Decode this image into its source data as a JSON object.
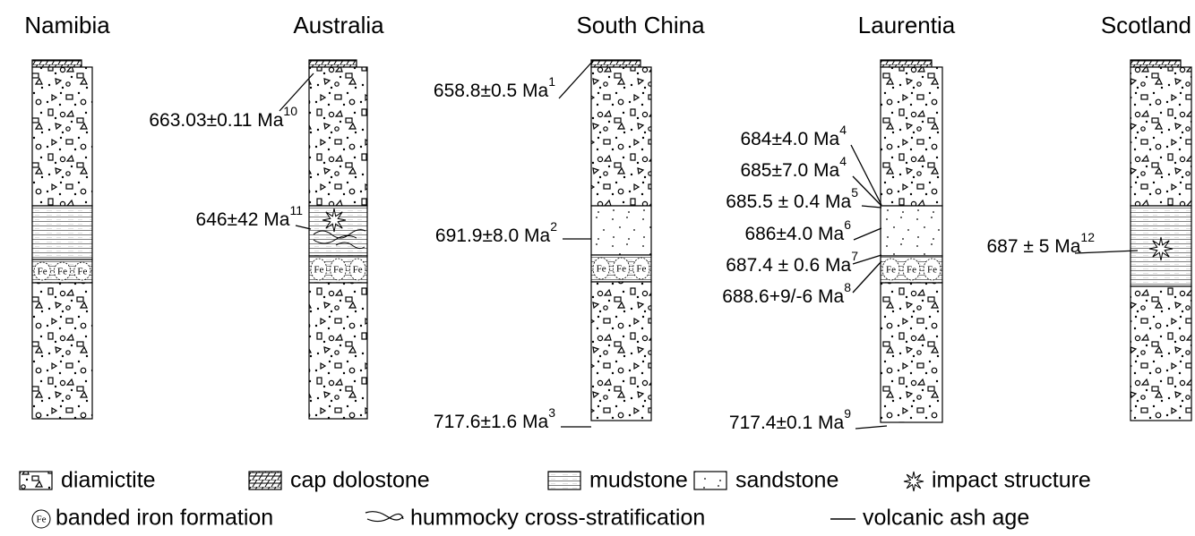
{
  "columns": [
    {
      "name": "Namibia",
      "ages": []
    },
    {
      "name": "Australia",
      "ages": [
        {
          "text": "663.03±0.11 Ma",
          "ref": "10"
        },
        {
          "text": "646±42 Ma",
          "ref": "11"
        }
      ]
    },
    {
      "name": "South China",
      "ages": [
        {
          "text": "658.8±0.5 Ma",
          "ref": "1"
        },
        {
          "text": "691.9±8.0 Ma",
          "ref": "2"
        },
        {
          "text": "717.6±1.6 Ma",
          "ref": "3"
        }
      ]
    },
    {
      "name": "Laurentia",
      "ages": [
        {
          "text": "684±4.0 Ma",
          "ref": "4"
        },
        {
          "text": "685±7.0 Ma",
          "ref": "4"
        },
        {
          "text": "685.5 ± 0.4 Ma",
          "ref": "5"
        },
        {
          "text": "686±4.0 Ma",
          "ref": "6"
        },
        {
          "text": "687.4 ± 0.6 Ma",
          "ref": "7"
        },
        {
          "text": "688.6+9/-6 Ma",
          "ref": "8"
        },
        {
          "text": "717.4±0.1 Ma",
          "ref": "9"
        }
      ]
    },
    {
      "name": "Scotland",
      "ages": [
        {
          "text": "687 ± 5 Ma",
          "ref": "12"
        }
      ]
    }
  ],
  "symbols": {
    "fe": "Fe"
  },
  "legend": [
    "diamictite",
    "cap dolostone",
    "mudstone",
    "sandstone",
    "impact structure",
    "banded iron formation",
    "hummocky cross-stratification",
    "volcanic ash age"
  ]
}
